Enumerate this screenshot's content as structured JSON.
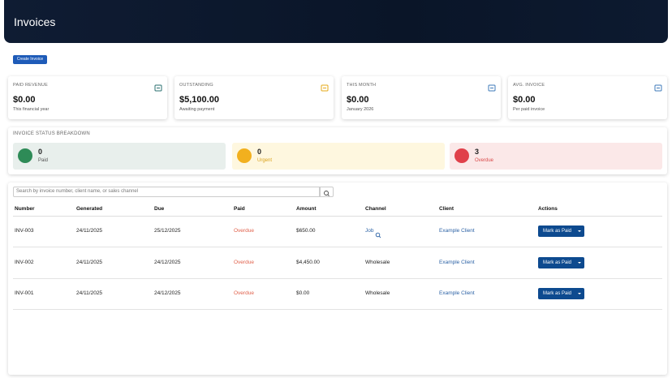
{
  "header": {
    "title": "Invoices"
  },
  "create_button": "Create Invoice",
  "stats": [
    {
      "label": "PAID REVENUE",
      "value": "$0.00",
      "note": "This financial year"
    },
    {
      "label": "OUTSTANDING",
      "value": "$5,100.00",
      "note": "Awaiting payment"
    },
    {
      "label": "THIS MONTH",
      "value": "$0.00",
      "note": "January 2026"
    },
    {
      "label": "AVG. INVOICE",
      "value": "$0.00",
      "note": "Per paid invoice"
    }
  ],
  "breakdown": {
    "title": "INVOICE STATUS BREAKDOWN",
    "items": [
      {
        "count": 0,
        "label": "Paid"
      },
      {
        "count": 0,
        "label": "Urgent"
      },
      {
        "count": 3,
        "label": "Overdue"
      }
    ]
  },
  "search": {
    "placeholder": "Search by invoice number, client name, or sales channel"
  },
  "table": {
    "columns": [
      "Number",
      "Generated",
      "Due",
      "Paid",
      "Amount",
      "Channel",
      "Client",
      "Actions"
    ],
    "rows": [
      [
        "INV-003",
        "24/11/2025",
        "25/12/2025",
        "Overdue",
        "$650.00",
        "Job",
        "Example Client",
        "Mark as Paid"
      ],
      [
        "INV-002",
        "24/11/2025",
        "24/12/2025",
        "Overdue",
        "$4,450.00",
        "Wholesale",
        "Example Client",
        "Mark as Paid"
      ],
      [
        "INV-001",
        "24/11/2025",
        "24/12/2025",
        "Overdue",
        "$0.00",
        "Wholesale",
        "Example Client",
        "Mark as Paid"
      ]
    ]
  }
}
